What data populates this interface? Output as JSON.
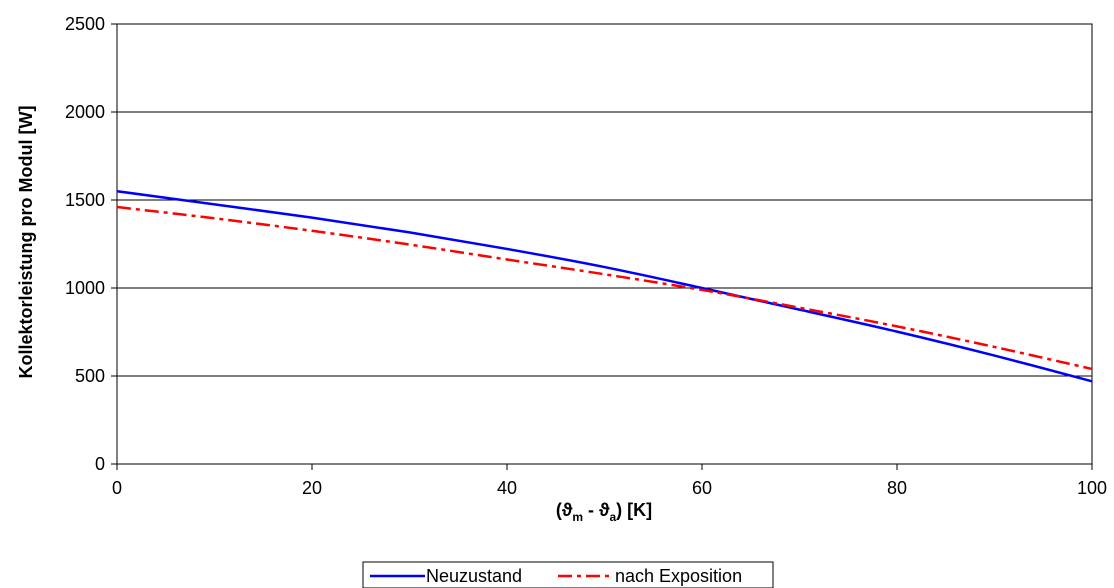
{
  "chart_data": {
    "type": "line",
    "title": "",
    "ylabel": "Kollektorleistung pro Modul [W]",
    "xlabel_parts": {
      "open": "(",
      "theta": "ϑ",
      "sub_m": "m",
      "minus": " - ",
      "sub_a": "a",
      "close": ") [K]"
    },
    "xlim": [
      0,
      100
    ],
    "ylim": [
      0,
      2500
    ],
    "xticks": [
      0,
      20,
      40,
      60,
      80,
      100
    ],
    "yticks": [
      0,
      500,
      1000,
      1500,
      2000,
      2500
    ],
    "grid": "horizontal",
    "legend_position": "bottom-center",
    "series": [
      {
        "name": "Neuzustand",
        "color": "#0000ff",
        "style": "solid",
        "x": [
          0,
          10,
          20,
          30,
          40,
          50,
          60,
          70,
          80,
          90,
          100
        ],
        "y": [
          1550,
          1475,
          1400,
          1316,
          1222,
          1119,
          1000,
          877,
          752,
          616,
          470
        ]
      },
      {
        "name": "nach Exposition",
        "color": "#ff0000",
        "style": "dashdot",
        "x": [
          0,
          10,
          20,
          30,
          40,
          50,
          60,
          70,
          80,
          90,
          100
        ],
        "y": [
          1460,
          1396,
          1325,
          1247,
          1162,
          1078,
          989,
          888,
          782,
          665,
          540
        ]
      }
    ]
  }
}
